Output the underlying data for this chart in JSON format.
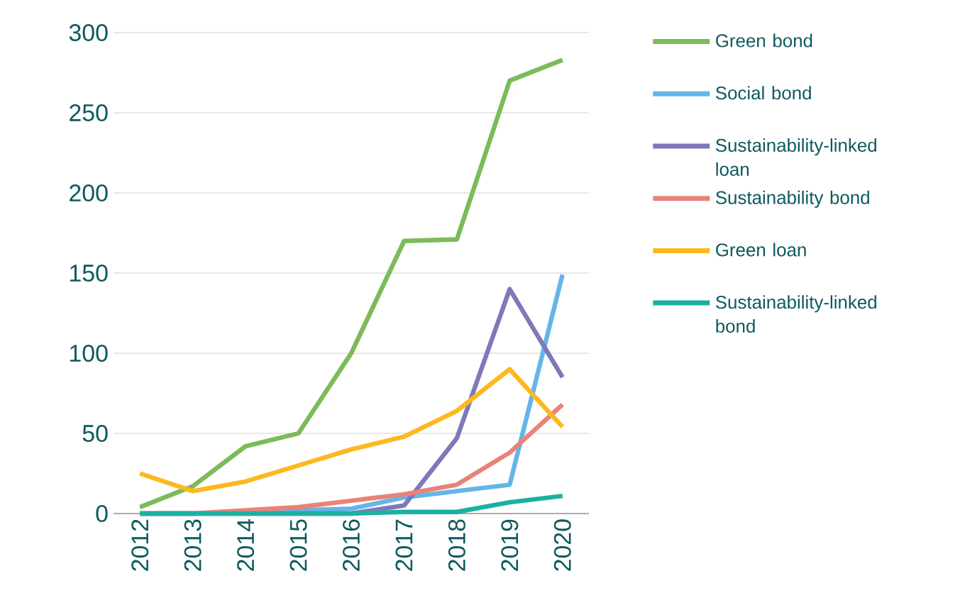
{
  "chart_data": {
    "type": "line",
    "categories": [
      "2012",
      "2013",
      "2014",
      "2015",
      "2016",
      "2017",
      "2018",
      "2019",
      "2020"
    ],
    "series": [
      {
        "name": "Green bond",
        "color": "#7cbb5a",
        "values": [
          4,
          17,
          42,
          50,
          100,
          170,
          171,
          270,
          283
        ]
      },
      {
        "name": "Social bond",
        "color": "#64b5e8",
        "values": [
          0,
          0,
          1,
          2,
          3,
          10,
          14,
          18,
          149
        ]
      },
      {
        "name": "Sustainability-linked loan",
        "color": "#7f79b9",
        "values": [
          0,
          0,
          0,
          0,
          0,
          5,
          47,
          140,
          85
        ]
      },
      {
        "name": "Sustainability bond",
        "color": "#e9837a",
        "values": [
          0,
          0,
          2,
          4,
          8,
          12,
          18,
          38,
          68
        ]
      },
      {
        "name": "Green loan",
        "color": "#fdb81e",
        "values": [
          25,
          14,
          20,
          30,
          40,
          48,
          64,
          90,
          54
        ]
      },
      {
        "name": "Sustainability-linked bond",
        "color": "#1cb0a4",
        "values": [
          0,
          0,
          0,
          0,
          0,
          1,
          1,
          7,
          11
        ]
      }
    ],
    "ylim": [
      0,
      300
    ],
    "yticks": [
      0,
      50,
      100,
      150,
      200,
      250,
      300
    ],
    "grid": "y",
    "legend": "right",
    "marker": "none",
    "line_style": "solid"
  }
}
